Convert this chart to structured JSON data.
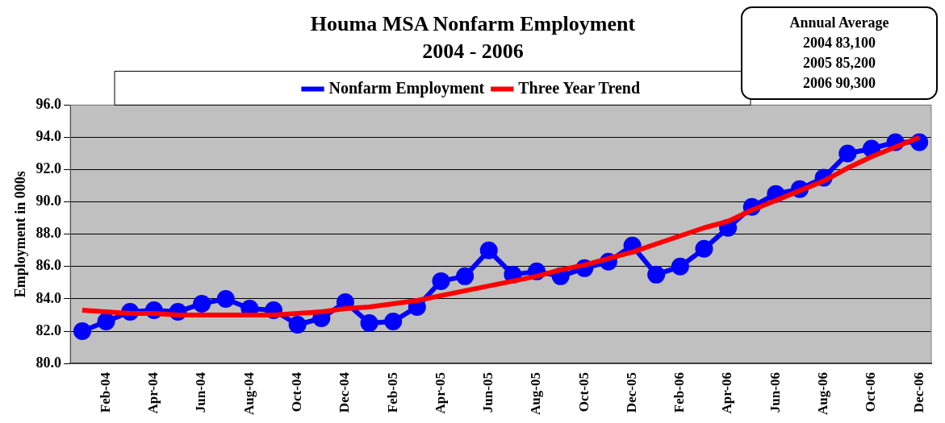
{
  "chart_data": {
    "type": "line",
    "title": "Houma MSA Nonfarm Employment",
    "subtitle": "2004 - 2006",
    "ylabel": "Employment in 000s",
    "categories": [
      null,
      "Feb-04",
      null,
      "Apr-04",
      null,
      "Jun-04",
      null,
      "Aug-04",
      null,
      "Oct-04",
      null,
      "Dec-04",
      null,
      "Feb-05",
      null,
      "Apr-05",
      null,
      "Jun-05",
      null,
      "Aug-05",
      null,
      "Oct-05",
      null,
      "Dec-05",
      null,
      "Feb-06",
      null,
      "Apr-06",
      null,
      "Jun-06",
      null,
      "Aug-06",
      null,
      "Oct-06",
      null,
      "Dec-06"
    ],
    "series": [
      {
        "name": "Nonfarm Employment",
        "color": "#0000ff",
        "marker": "circle",
        "line_style": "solid",
        "values": [
          82.0,
          82.6,
          83.2,
          83.3,
          83.2,
          83.7,
          84.0,
          83.4,
          83.3,
          82.4,
          82.8,
          83.8,
          82.5,
          82.6,
          83.5,
          85.1,
          85.4,
          87.0,
          85.5,
          85.7,
          85.4,
          85.9,
          86.3,
          87.3,
          85.5,
          86.0,
          87.1,
          88.4,
          89.7,
          90.5,
          90.8,
          91.5,
          93.0,
          93.3,
          93.7,
          93.7
        ]
      },
      {
        "name": "Three Year Trend",
        "color": "#ff0000",
        "marker": "none",
        "line_style": "solid",
        "values": [
          83.3,
          83.2,
          83.1,
          83.1,
          83.0,
          83.0,
          83.0,
          83.0,
          83.0,
          83.1,
          83.2,
          83.4,
          83.5,
          83.7,
          83.9,
          84.2,
          84.5,
          84.8,
          85.1,
          85.4,
          85.8,
          86.1,
          86.5,
          86.9,
          87.4,
          87.9,
          88.4,
          88.8,
          89.5,
          90.1,
          90.7,
          91.3,
          92.1,
          92.8,
          93.4,
          94.0
        ]
      }
    ],
    "ylim": [
      80,
      96
    ],
    "yticks": [
      {
        "value": 80,
        "label": "80.0"
      },
      {
        "value": 82,
        "label": "82.0"
      },
      {
        "value": 84,
        "label": "84.0"
      },
      {
        "value": 86,
        "label": "86.0"
      },
      {
        "value": 88,
        "label": "88.0"
      },
      {
        "value": 90,
        "label": "90.0"
      },
      {
        "value": 92,
        "label": "92.0"
      },
      {
        "value": 94,
        "label": "94.0"
      },
      {
        "value": 96,
        "label": "96.0"
      }
    ],
    "grid": "y",
    "legend": "top",
    "annotations": [
      "Annual Average",
      "2004 83,100",
      "2005 85,200",
      "2006 90,300"
    ]
  }
}
